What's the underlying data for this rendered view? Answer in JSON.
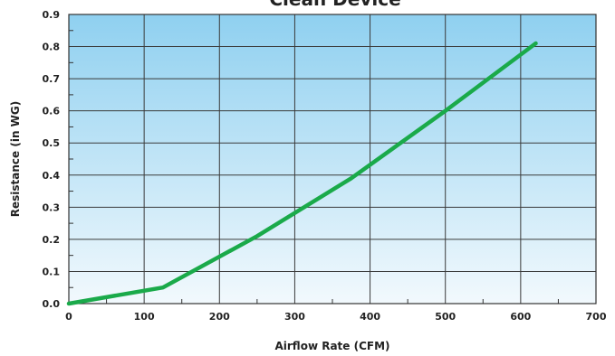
{
  "chart_data": {
    "type": "line",
    "title": "Clean Device",
    "xlabel": "Airflow Rate (CFM)",
    "ylabel": "Resistance (in WG)",
    "xlim": [
      0,
      700
    ],
    "ylim": [
      0,
      0.9
    ],
    "x_ticks": [
      "0",
      "100",
      "200",
      "300",
      "400",
      "500",
      "600",
      "700"
    ],
    "y_ticks": [
      "0.0",
      "0.1",
      "0.2",
      "0.3",
      "0.4",
      "0.5",
      "0.6",
      "0.7",
      "0.8",
      "0.9"
    ],
    "grid": true,
    "series": [
      {
        "x": [
          0,
          125,
          250,
          375,
          500,
          620
        ],
        "y": [
          0.0,
          0.05,
          0.21,
          0.39,
          0.6,
          0.81
        ]
      }
    ],
    "colors": {
      "line": "#1aaa4a",
      "bg_top": "#8fd0f0",
      "bg_bottom": "#f2f9fd",
      "grid": "#3a3a3a"
    }
  }
}
